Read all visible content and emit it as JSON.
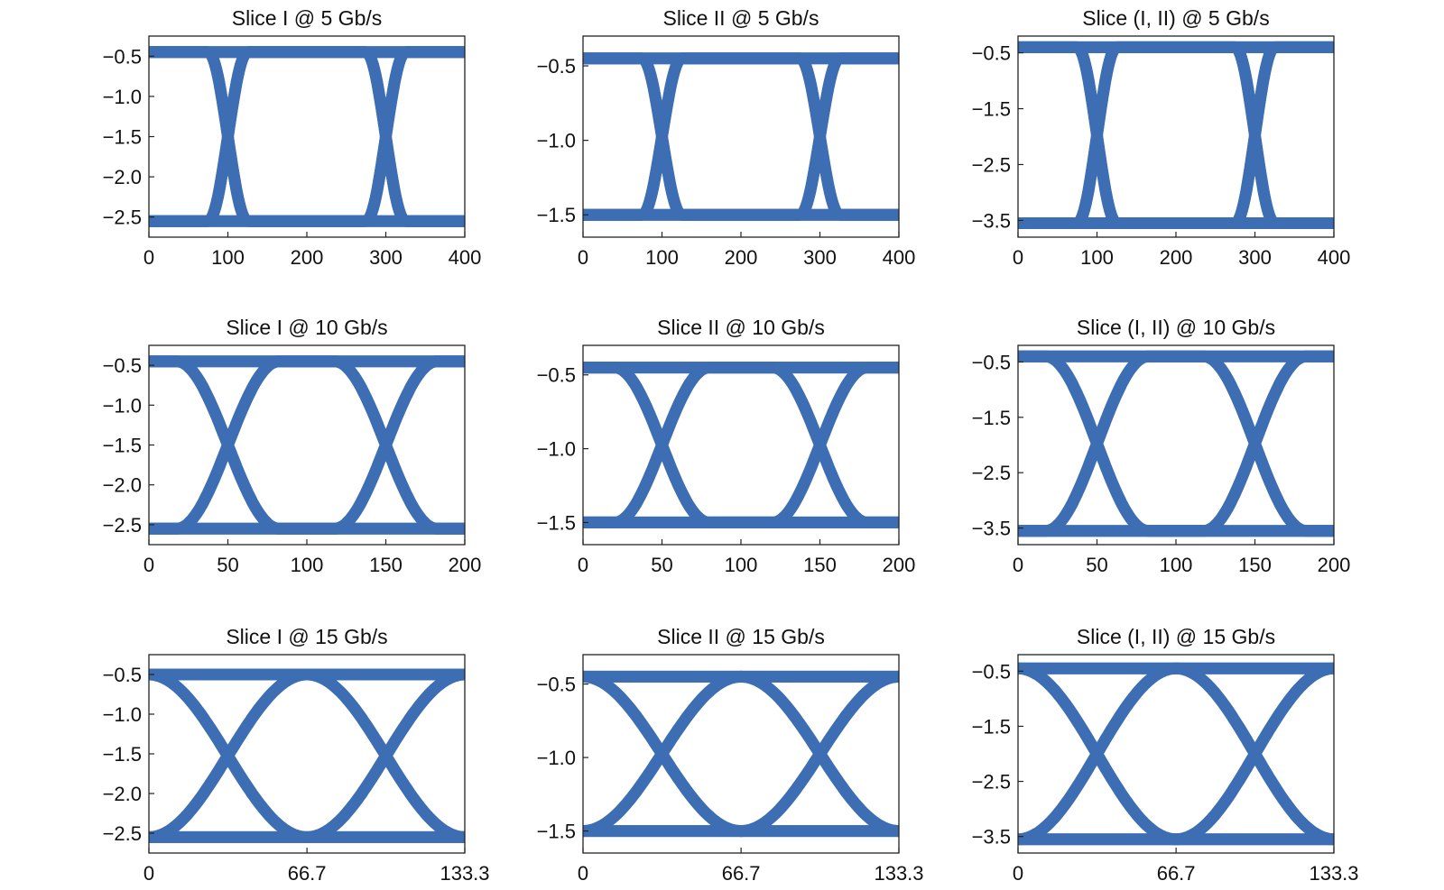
{
  "colors": {
    "trace": "#3d6eb4",
    "axes": "#222222",
    "background": "#ffffff"
  },
  "chart_data": [
    {
      "type": "line",
      "title": "Slice I @ 5 Gb/s",
      "xlim": [
        0,
        400
      ],
      "ylim": [
        -2.75,
        -0.25
      ],
      "xticks": [
        0,
        100,
        200,
        300,
        400
      ],
      "xtick_labels": [
        "0",
        "100",
        "200",
        "300",
        "400"
      ],
      "yticks": [
        -0.5,
        -1.0,
        -1.5,
        -2.0,
        -2.5
      ],
      "ytick_labels": [
        "−0.5",
        "−1.0",
        "−1.5",
        "−2.0",
        "−2.5"
      ],
      "series": [
        {
          "high": -0.45,
          "low": -2.55,
          "crossings": [
            100,
            300
          ],
          "transition_width": 50,
          "unit_interval": 200
        }
      ]
    },
    {
      "type": "line",
      "title": "Slice II @ 5 Gb/s",
      "xlim": [
        0,
        400
      ],
      "ylim": [
        -1.65,
        -0.3
      ],
      "xticks": [
        0,
        100,
        200,
        300,
        400
      ],
      "xtick_labels": [
        "0",
        "100",
        "200",
        "300",
        "400"
      ],
      "yticks": [
        -0.5,
        -1.0,
        -1.5
      ],
      "ytick_labels": [
        "−0.5",
        "−1.0",
        "−1.5"
      ],
      "series": [
        {
          "high": -0.45,
          "low": -1.5,
          "crossings": [
            100,
            300
          ],
          "transition_width": 50,
          "unit_interval": 200
        }
      ]
    },
    {
      "type": "line",
      "title": "Slice (I, II) @ 5 Gb/s",
      "xlim": [
        0,
        400
      ],
      "ylim": [
        -3.8,
        -0.2
      ],
      "xticks": [
        0,
        100,
        200,
        300,
        400
      ],
      "xtick_labels": [
        "0",
        "100",
        "200",
        "300",
        "400"
      ],
      "yticks": [
        -0.5,
        -1.5,
        -2.5,
        -3.5
      ],
      "ytick_labels": [
        "−0.5",
        "−1.5",
        "−2.5",
        "−3.5"
      ],
      "series": [
        {
          "high": -0.4,
          "low": -3.55,
          "crossings": [
            100,
            300
          ],
          "transition_width": 50,
          "unit_interval": 200
        }
      ]
    },
    {
      "type": "line",
      "title": "Slice I @ 10 Gb/s",
      "xlim": [
        0,
        200
      ],
      "ylim": [
        -2.75,
        -0.25
      ],
      "xticks": [
        0,
        50,
        100,
        150,
        200
      ],
      "xtick_labels": [
        "0",
        "50",
        "100",
        "150",
        "200"
      ],
      "yticks": [
        -0.5,
        -1.0,
        -1.5,
        -2.0,
        -2.5
      ],
      "ytick_labels": [
        "−0.5",
        "−1.0",
        "−1.5",
        "−2.0",
        "−2.5"
      ],
      "series": [
        {
          "high": -0.45,
          "low": -2.55,
          "crossings": [
            50,
            150
          ],
          "transition_width": 65,
          "unit_interval": 100
        }
      ]
    },
    {
      "type": "line",
      "title": "Slice II @ 10 Gb/s",
      "xlim": [
        0,
        200
      ],
      "ylim": [
        -1.65,
        -0.3
      ],
      "xticks": [
        0,
        50,
        100,
        150,
        200
      ],
      "xtick_labels": [
        "0",
        "50",
        "100",
        "150",
        "200"
      ],
      "yticks": [
        -0.5,
        -1.0,
        -1.5
      ],
      "ytick_labels": [
        "−0.5",
        "−1.0",
        "−1.5"
      ],
      "series": [
        {
          "high": -0.45,
          "low": -1.5,
          "crossings": [
            50,
            150
          ],
          "transition_width": 60,
          "unit_interval": 100
        }
      ]
    },
    {
      "type": "line",
      "title": "Slice (I, II) @ 10 Gb/s",
      "xlim": [
        0,
        200
      ],
      "ylim": [
        -3.8,
        -0.2
      ],
      "xticks": [
        0,
        50,
        100,
        150,
        200
      ],
      "xtick_labels": [
        "0",
        "50",
        "100",
        "150",
        "200"
      ],
      "yticks": [
        -0.5,
        -1.5,
        -2.5,
        -3.5
      ],
      "ytick_labels": [
        "−0.5",
        "−1.5",
        "−2.5",
        "−3.5"
      ],
      "series": [
        {
          "high": -0.4,
          "low": -3.55,
          "crossings": [
            50,
            150
          ],
          "transition_width": 65,
          "unit_interval": 100
        }
      ]
    },
    {
      "type": "line",
      "title": "Slice I @ 15 Gb/s",
      "xlim": [
        0,
        133.3
      ],
      "ylim": [
        -2.75,
        -0.25
      ],
      "xticks": [
        0,
        66.7,
        133.3
      ],
      "xtick_labels": [
        "0",
        "66.7",
        "133.3"
      ],
      "yticks": [
        -0.5,
        -1.0,
        -1.5,
        -2.0,
        -2.5
      ],
      "ytick_labels": [
        "−0.5",
        "−1.0",
        "−1.5",
        "−2.0",
        "−2.5"
      ],
      "series": [
        {
          "high": -0.5,
          "low": -2.55,
          "crossings": [
            33.3,
            100
          ],
          "transition_width": 66.7,
          "unit_interval": 66.7
        }
      ]
    },
    {
      "type": "line",
      "title": "Slice II @ 15 Gb/s",
      "xlim": [
        0,
        133.3
      ],
      "ylim": [
        -1.65,
        -0.3
      ],
      "xticks": [
        0,
        66.7,
        133.3
      ],
      "xtick_labels": [
        "0",
        "66.7",
        "133.3"
      ],
      "yticks": [
        -0.5,
        -1.0,
        -1.5
      ],
      "ytick_labels": [
        "−0.5",
        "−1.0",
        "−1.5"
      ],
      "series": [
        {
          "high": -0.45,
          "low": -1.5,
          "crossings": [
            33.3,
            100
          ],
          "transition_width": 66.7,
          "unit_interval": 66.7
        }
      ]
    },
    {
      "type": "line",
      "title": "Slice (I, II) @ 15 Gb/s",
      "xlim": [
        0,
        133.3
      ],
      "ylim": [
        -3.8,
        -0.2
      ],
      "xticks": [
        0,
        66.7,
        133.3
      ],
      "xtick_labels": [
        "0",
        "66.7",
        "133.3"
      ],
      "yticks": [
        -0.5,
        -1.5,
        -2.5,
        -3.5
      ],
      "ytick_labels": [
        "−0.5",
        "−1.5",
        "−2.5",
        "−3.5"
      ],
      "series": [
        {
          "high": -0.45,
          "low": -3.55,
          "crossings": [
            33.3,
            100
          ],
          "transition_width": 66.7,
          "unit_interval": 66.7
        }
      ]
    }
  ]
}
